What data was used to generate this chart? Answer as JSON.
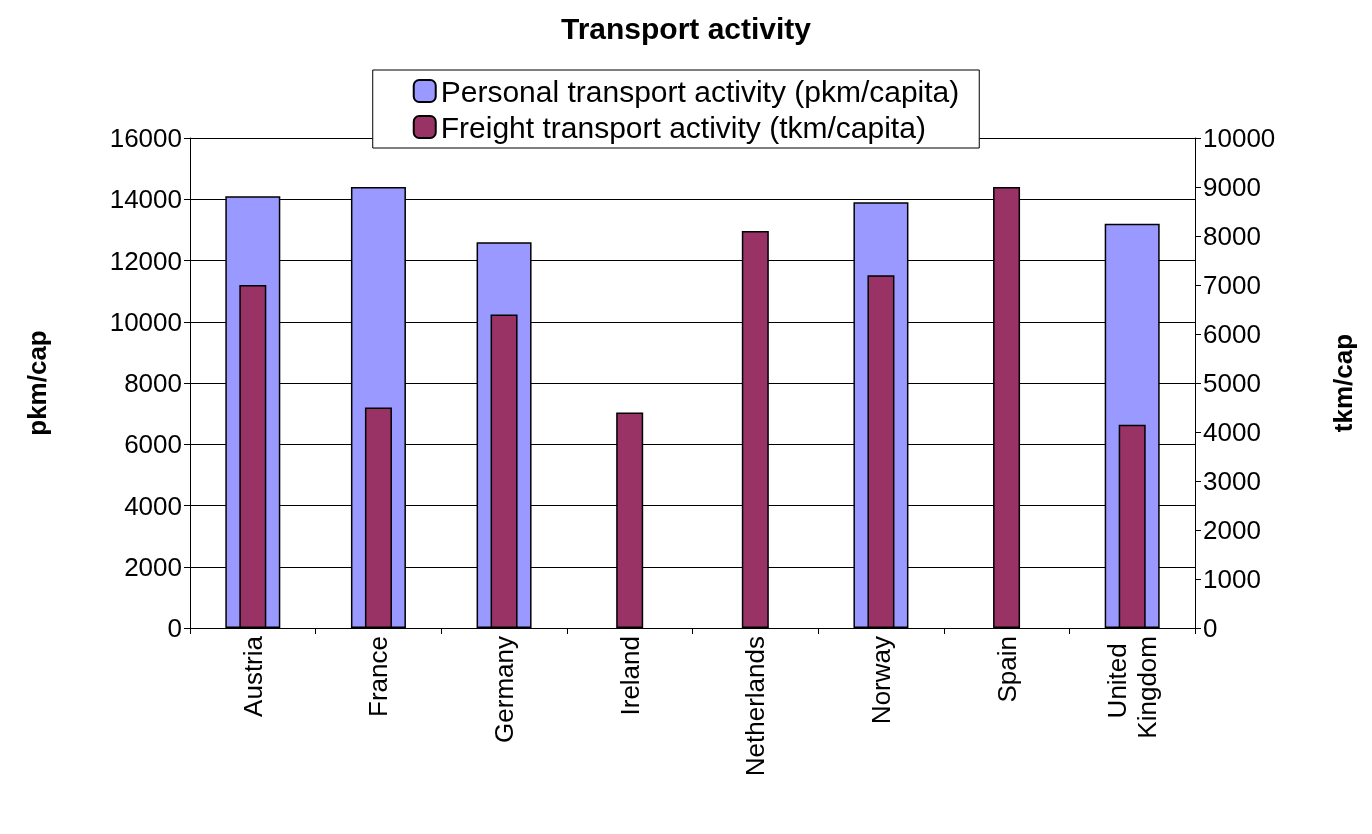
{
  "chart_data": {
    "type": "bar",
    "title": "Transport activity",
    "ylabel": "pkm/cap",
    "y2label": "tkm/cap",
    "categories": [
      "Austria",
      "France",
      "Germany",
      "Ireland",
      "Netherlands",
      "Norway",
      "Spain",
      "United Kingdom"
    ],
    "series": [
      {
        "name": "Personal transport activity (pkm/capita)",
        "color": "#9999ff",
        "values": [
          14100,
          14400,
          12600,
          null,
          null,
          13900,
          null,
          13200
        ]
      },
      {
        "name": "Freight transport activity (tkm/capita)",
        "color": "#993366",
        "axis": "y2",
        "values": [
          7000,
          4500,
          6400,
          4400,
          8100,
          7200,
          9000,
          4150
        ]
      }
    ],
    "ylim": [
      0,
      16000
    ],
    "yticks": [
      0,
      2000,
      4000,
      6000,
      8000,
      10000,
      12000,
      14000,
      16000
    ],
    "y2lim": [
      0,
      10000
    ],
    "y2ticks": [
      0,
      1000,
      2000,
      3000,
      4000,
      5000,
      6000,
      7000,
      8000,
      9000,
      10000
    ],
    "grid": "y",
    "legend": "top"
  }
}
